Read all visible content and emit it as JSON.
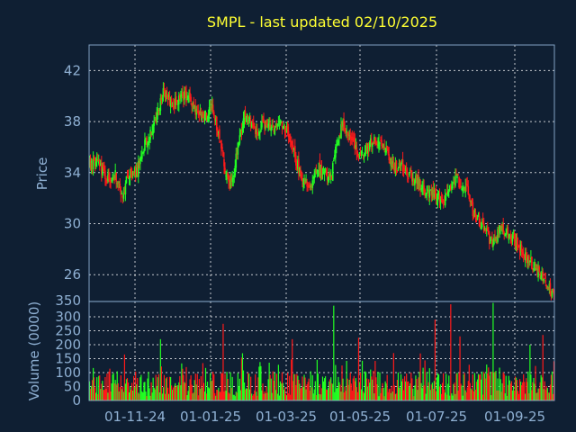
{
  "chart_data": {
    "type": "candlestick",
    "title": "SMPL - last updated 02/10/2025",
    "price_panel": {
      "ylabel": "Price",
      "yticks": [
        26,
        30,
        34,
        38,
        42
      ],
      "ylim": [
        23.9,
        44
      ],
      "grid": true
    },
    "volume_panel": {
      "ylabel": "Volume (0000)",
      "yticks": [
        0,
        50,
        100,
        150,
        200,
        250,
        300,
        350
      ],
      "ylim": [
        0,
        355
      ],
      "grid": true
    },
    "xticks": [
      "01-11-24",
      "01-01-25",
      "01-03-25",
      "01-05-25",
      "01-07-25",
      "01-09-25"
    ],
    "colors": {
      "up": "#22ff22",
      "down": "#ff1a1a",
      "grid": "#ffffff",
      "axis": "#8fb0d3",
      "background": "#0f1f33",
      "title": "#ffff33"
    },
    "price_path": [
      {
        "t": 0,
        "p": 34.6
      },
      {
        "t": 8,
        "p": 34.8
      },
      {
        "t": 18,
        "p": 33.5
      },
      {
        "t": 28,
        "p": 33.8
      },
      {
        "t": 36,
        "p": 32.3
      },
      {
        "t": 42,
        "p": 33.8
      },
      {
        "t": 52,
        "p": 34.2
      },
      {
        "t": 58,
        "p": 36.0
      },
      {
        "t": 65,
        "p": 37.0
      },
      {
        "t": 73,
        "p": 38.5
      },
      {
        "t": 80,
        "p": 40.3
      },
      {
        "t": 90,
        "p": 39.3
      },
      {
        "t": 102,
        "p": 40.0
      },
      {
        "t": 110,
        "p": 39.8
      },
      {
        "t": 118,
        "p": 38.3
      },
      {
        "t": 128,
        "p": 38.6
      },
      {
        "t": 134,
        "p": 39.0
      },
      {
        "t": 140,
        "p": 37.0
      },
      {
        "t": 146,
        "p": 34.5
      },
      {
        "t": 152,
        "p": 33.3
      },
      {
        "t": 156,
        "p": 33.8
      },
      {
        "t": 162,
        "p": 36.5
      },
      {
        "t": 168,
        "p": 38.5
      },
      {
        "t": 175,
        "p": 37.8
      },
      {
        "t": 182,
        "p": 37.3
      },
      {
        "t": 190,
        "p": 37.8
      },
      {
        "t": 200,
        "p": 37.3
      },
      {
        "t": 208,
        "p": 37.8
      },
      {
        "t": 214,
        "p": 37.5
      },
      {
        "t": 220,
        "p": 36.0
      },
      {
        "t": 226,
        "p": 34.5
      },
      {
        "t": 232,
        "p": 33.3
      },
      {
        "t": 240,
        "p": 33.0
      },
      {
        "t": 248,
        "p": 34.5
      },
      {
        "t": 256,
        "p": 34.0
      },
      {
        "t": 262,
        "p": 33.5
      },
      {
        "t": 268,
        "p": 36.0
      },
      {
        "t": 274,
        "p": 37.8
      },
      {
        "t": 280,
        "p": 37.5
      },
      {
        "t": 286,
        "p": 36.5
      },
      {
        "t": 292,
        "p": 35.5
      },
      {
        "t": 300,
        "p": 35.8
      },
      {
        "t": 308,
        "p": 36.6
      },
      {
        "t": 316,
        "p": 36.2
      },
      {
        "t": 322,
        "p": 35.6
      },
      {
        "t": 330,
        "p": 34.3
      },
      {
        "t": 338,
        "p": 34.6
      },
      {
        "t": 346,
        "p": 34.0
      },
      {
        "t": 354,
        "p": 33.5
      },
      {
        "t": 362,
        "p": 32.7
      },
      {
        "t": 370,
        "p": 32.5
      },
      {
        "t": 378,
        "p": 32.0
      },
      {
        "t": 386,
        "p": 31.8
      },
      {
        "t": 392,
        "p": 32.8
      },
      {
        "t": 398,
        "p": 33.5
      },
      {
        "t": 404,
        "p": 33.0
      },
      {
        "t": 410,
        "p": 32.6
      },
      {
        "t": 416,
        "p": 31.0
      },
      {
        "t": 422,
        "p": 30.3
      },
      {
        "t": 428,
        "p": 29.5
      },
      {
        "t": 434,
        "p": 28.8
      },
      {
        "t": 440,
        "p": 28.6
      },
      {
        "t": 446,
        "p": 29.7
      },
      {
        "t": 452,
        "p": 29.3
      },
      {
        "t": 458,
        "p": 28.7
      },
      {
        "t": 464,
        "p": 28.4
      },
      {
        "t": 470,
        "p": 27.8
      },
      {
        "t": 476,
        "p": 27.2
      },
      {
        "t": 482,
        "p": 26.6
      },
      {
        "t": 488,
        "p": 26.2
      },
      {
        "t": 494,
        "p": 25.6
      },
      {
        "t": 500,
        "p": 24.8
      },
      {
        "t": 504,
        "p": 24.5
      }
    ],
    "volume_spikes": [
      {
        "t": 38,
        "v": 165
      },
      {
        "t": 77,
        "v": 220
      },
      {
        "t": 145,
        "v": 275
      },
      {
        "t": 220,
        "v": 220
      },
      {
        "t": 265,
        "v": 340
      },
      {
        "t": 292,
        "v": 225
      },
      {
        "t": 330,
        "v": 170
      },
      {
        "t": 375,
        "v": 290
      },
      {
        "t": 392,
        "v": 345
      },
      {
        "t": 402,
        "v": 230
      },
      {
        "t": 438,
        "v": 350
      },
      {
        "t": 478,
        "v": 200
      },
      {
        "t": 492,
        "v": 235
      }
    ]
  }
}
